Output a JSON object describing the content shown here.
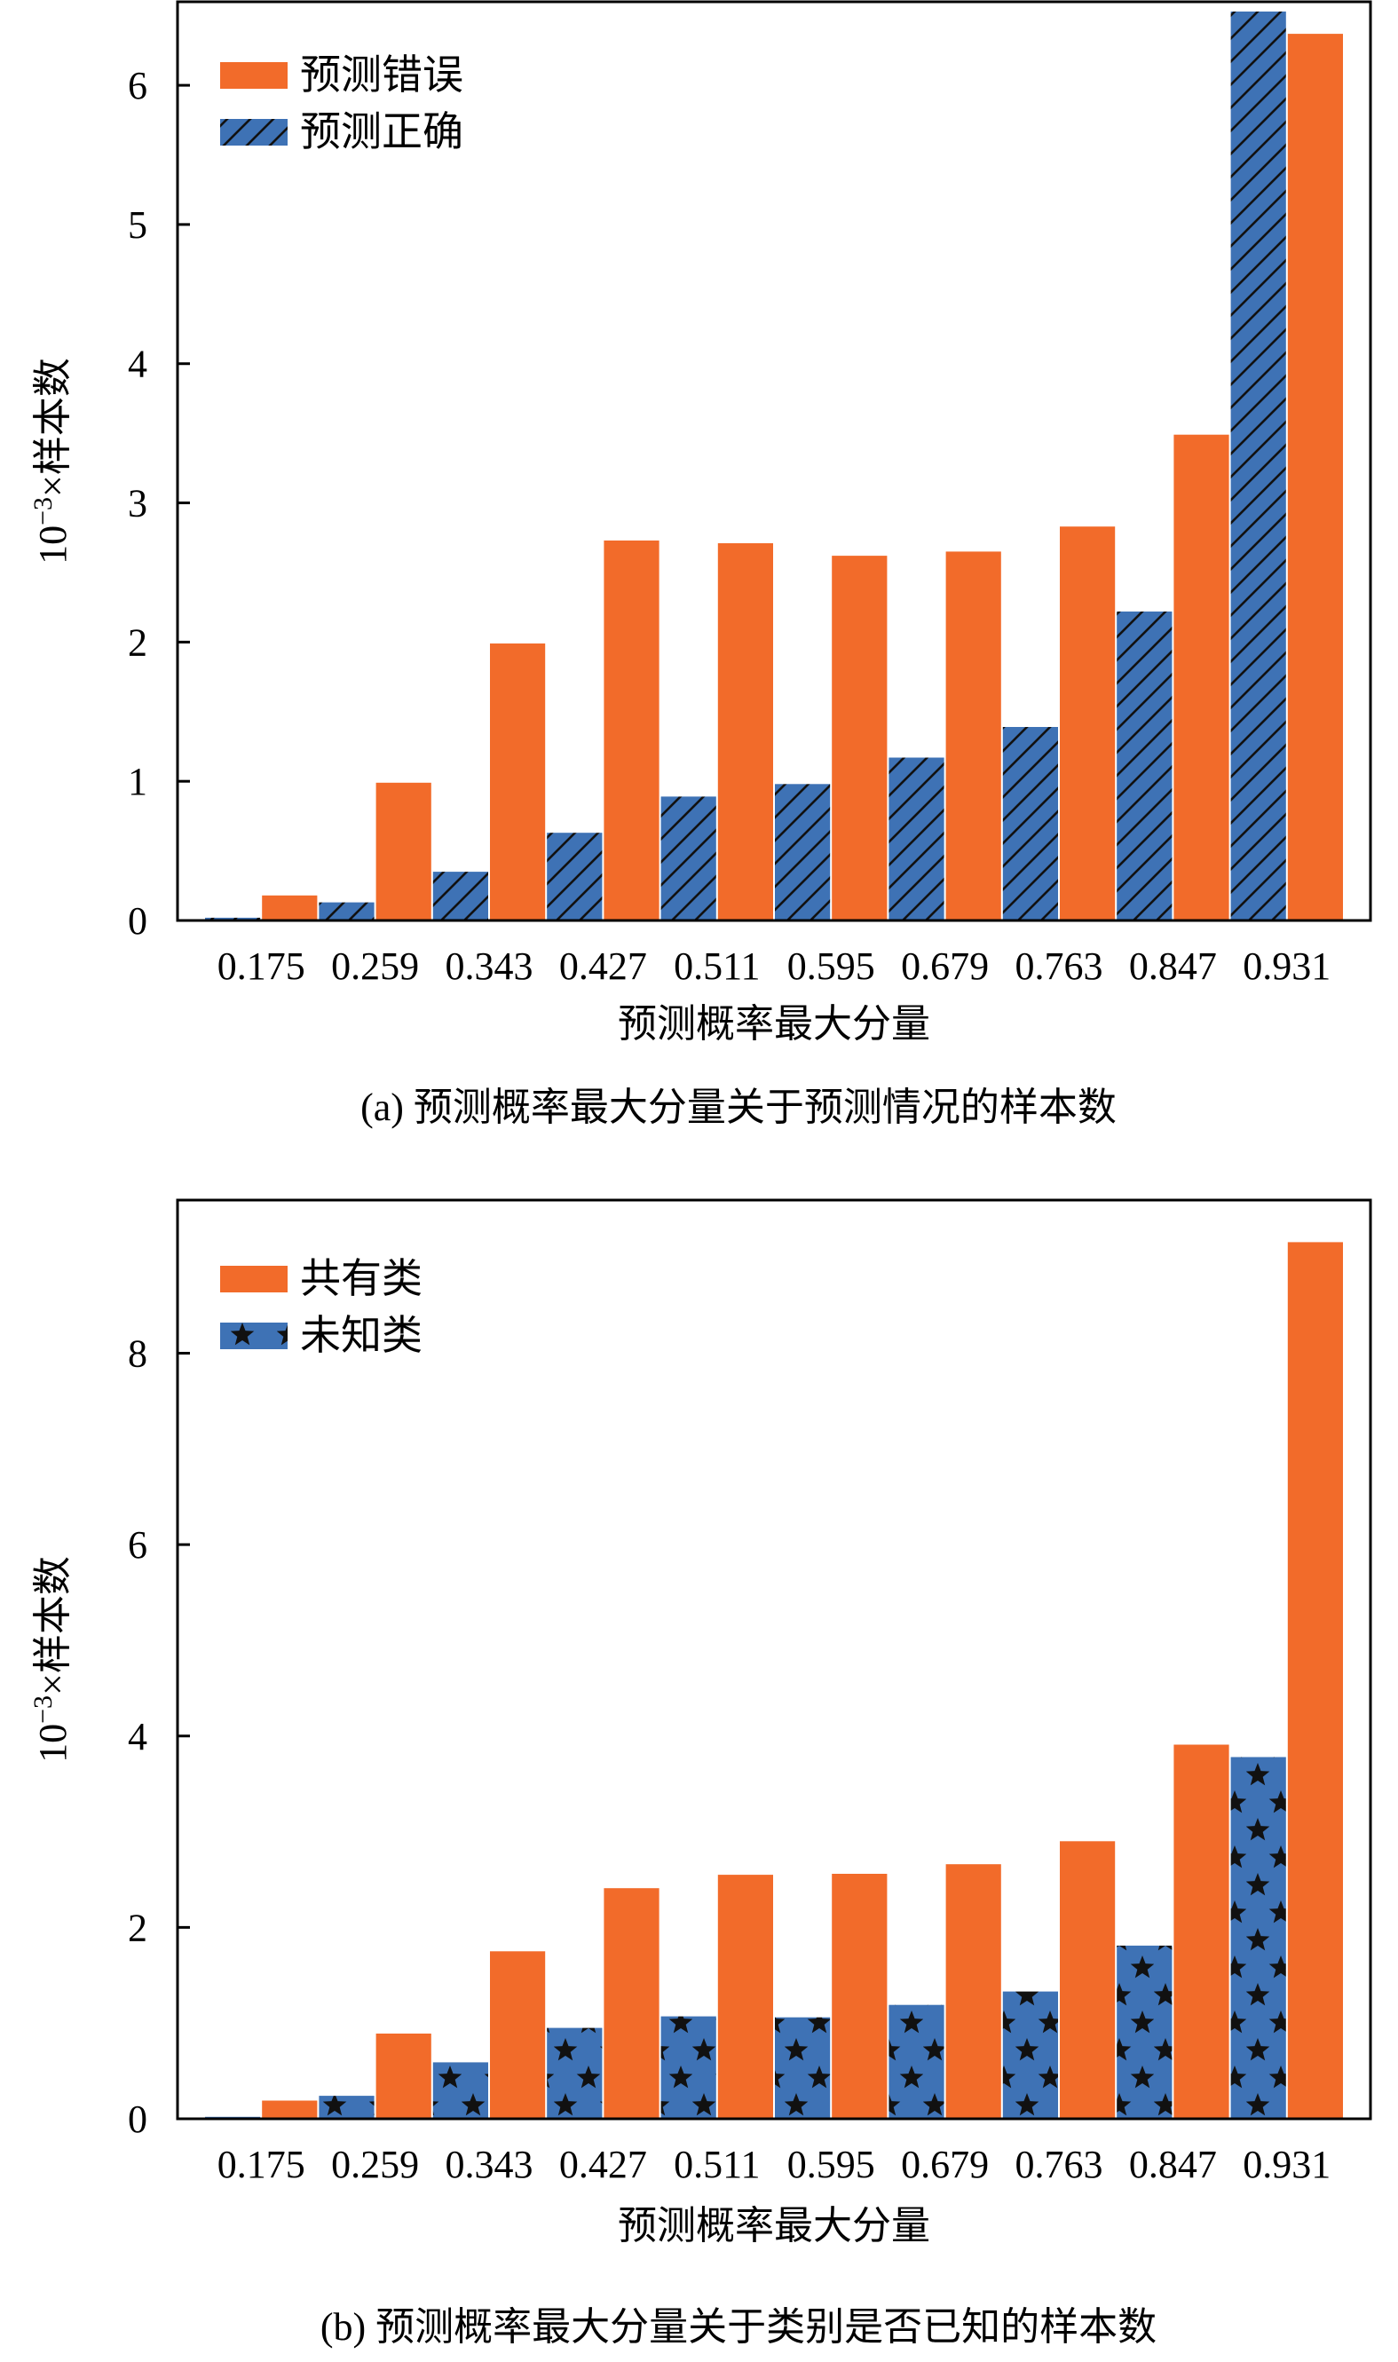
{
  "colors": {
    "orange": "#F26B2A",
    "blue": "#3E72B5",
    "pattern_ink": "#111111",
    "axis": "#000000"
  },
  "chart_data": [
    {
      "type": "bar",
      "caption": "(a)  预测概率最大分量关于预测情况的样本数",
      "xlabel": "预测概率最大分量",
      "ylabel_prefix": "10",
      "ylabel_exp": "−3",
      "ylabel_suffix": "×样本数",
      "ylim": [
        0,
        6.6
      ],
      "yticks": [
        0,
        1,
        2,
        3,
        4,
        5,
        6
      ],
      "categories": [
        "0.175",
        "0.259",
        "0.343",
        "0.427",
        "0.511",
        "0.595",
        "0.679",
        "0.763",
        "0.847",
        "0.931"
      ],
      "legend_position": "top-left",
      "series": [
        {
          "name": "预测正确",
          "color_key": "blue",
          "pattern": "hatch",
          "values": [
            0.02,
            0.13,
            0.35,
            0.63,
            0.89,
            0.98,
            1.17,
            1.39,
            2.22,
            6.53
          ]
        },
        {
          "name": "预测错误",
          "color_key": "orange",
          "pattern": "none",
          "values": [
            0.18,
            0.99,
            1.99,
            2.73,
            2.71,
            2.62,
            2.65,
            2.83,
            3.49,
            6.37
          ]
        }
      ],
      "legend_order": [
        1,
        0
      ]
    },
    {
      "type": "bar",
      "caption": "(b)  预测概率最大分量关于类别是否已知的样本数",
      "xlabel": "预测概率最大分量",
      "ylabel_prefix": "10",
      "ylabel_exp": "−3",
      "ylabel_suffix": "×样本数",
      "ylim": [
        0,
        9.6
      ],
      "yticks": [
        0,
        2,
        4,
        6,
        8
      ],
      "categories": [
        "0.175",
        "0.259",
        "0.343",
        "0.427",
        "0.511",
        "0.595",
        "0.679",
        "0.763",
        "0.847",
        "0.931"
      ],
      "legend_position": "top-left",
      "series": [
        {
          "name": "未知类",
          "color_key": "blue",
          "pattern": "stars",
          "values": [
            0.02,
            0.24,
            0.59,
            0.95,
            1.07,
            1.06,
            1.19,
            1.33,
            1.81,
            3.78
          ]
        },
        {
          "name": "共有类",
          "color_key": "orange",
          "pattern": "none",
          "values": [
            0.19,
            0.89,
            1.75,
            2.41,
            2.55,
            2.56,
            2.66,
            2.9,
            3.91,
            9.16
          ]
        }
      ],
      "legend_order": [
        1,
        0
      ]
    }
  ]
}
